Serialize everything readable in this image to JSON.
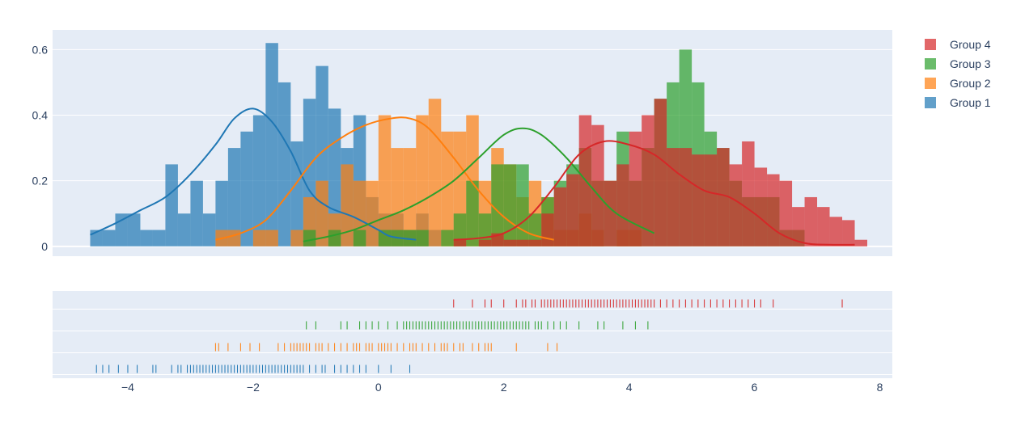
{
  "chart_data": {
    "type": "histogram",
    "style": {
      "plot_background": "#e5ecf6",
      "gridline": "#ffffff",
      "tick_text": "#2a3f5f",
      "bar_opacity": 0.7
    },
    "bin_width": 0.2,
    "x_axis": {
      "range": [
        -5.2,
        8.2
      ],
      "ticks": [
        -4,
        -2,
        0,
        2,
        4,
        6,
        8
      ],
      "tick_labels": [
        "−4",
        "−2",
        "0",
        "2",
        "4",
        "6",
        "8"
      ]
    },
    "y_axis": {
      "range": [
        -0.03,
        0.66
      ],
      "ticks": [
        0,
        0.2,
        0.4,
        0.6
      ],
      "tick_labels": [
        "0",
        "0.2",
        "0.4",
        "0.6"
      ]
    },
    "legend": {
      "position": "top-right",
      "order": [
        "Group 4",
        "Group 3",
        "Group 2",
        "Group 1"
      ]
    },
    "series": [
      {
        "name": "Group 1",
        "color": "#1f77b4",
        "bins_start": -4.6,
        "density": [
          0.05,
          0.05,
          0.1,
          0.1,
          0.05,
          0.05,
          0.25,
          0.1,
          0.2,
          0.1,
          0.2,
          0.3,
          0.35,
          0.4,
          0.62,
          0.5,
          0.32,
          0.45,
          0.55,
          0.42,
          0.3,
          0.4,
          0.15,
          0.1,
          0.1,
          0.05,
          0.1,
          0.05
        ],
        "kde_x": [
          -4.6,
          -4.2,
          -3.8,
          -3.4,
          -3.0,
          -2.6,
          -2.3,
          -2.0,
          -1.7,
          -1.4,
          -1.1,
          -0.8,
          -0.4,
          0.0,
          0.2,
          0.6
        ],
        "kde_y": [
          0.035,
          0.07,
          0.11,
          0.15,
          0.22,
          0.31,
          0.39,
          0.42,
          0.38,
          0.29,
          0.17,
          0.12,
          0.09,
          0.05,
          0.03,
          0.02
        ],
        "rugs": [
          -4.5,
          -4.4,
          -4.3,
          -4.15,
          -4.0,
          -3.85,
          -3.6,
          -3.55,
          -3.3,
          -3.2,
          -3.15,
          -3.05,
          -3.0,
          -2.95,
          -2.9,
          -2.85,
          -2.8,
          -2.75,
          -2.7,
          -2.65,
          -2.6,
          -2.55,
          -2.5,
          -2.45,
          -2.4,
          -2.35,
          -2.3,
          -2.25,
          -2.2,
          -2.15,
          -2.1,
          -2.05,
          -2.0,
          -1.95,
          -1.9,
          -1.85,
          -1.8,
          -1.75,
          -1.7,
          -1.65,
          -1.6,
          -1.55,
          -1.5,
          -1.45,
          -1.4,
          -1.35,
          -1.3,
          -1.25,
          -1.2,
          -1.1,
          -1.0,
          -0.9,
          -0.85,
          -0.7,
          -0.6,
          -0.5,
          -0.4,
          -0.3,
          -0.2,
          0.0,
          0.2,
          0.5
        ]
      },
      {
        "name": "Group 2",
        "color": "#ff7f0e",
        "bins_start": -2.6,
        "density": [
          0.05,
          0.05,
          0.0,
          0.05,
          0.05,
          0.0,
          0.05,
          0.15,
          0.2,
          0.1,
          0.25,
          0.2,
          0.2,
          0.4,
          0.3,
          0.3,
          0.4,
          0.45,
          0.35,
          0.35,
          0.4,
          0.2,
          0.3,
          0.25,
          0.15,
          0.2,
          0.15,
          0.05,
          0.05,
          0.1,
          0.05,
          0.0,
          0.05,
          0.05
        ],
        "kde_x": [
          -2.6,
          -2.2,
          -1.8,
          -1.4,
          -1.0,
          -0.6,
          -0.2,
          0.2,
          0.5,
          0.8,
          1.2,
          1.6,
          2.0,
          2.4,
          2.8
        ],
        "kde_y": [
          0.02,
          0.04,
          0.08,
          0.17,
          0.27,
          0.33,
          0.37,
          0.39,
          0.39,
          0.36,
          0.27,
          0.17,
          0.09,
          0.04,
          0.02
        ],
        "rugs": [
          -2.6,
          -2.55,
          -2.4,
          -2.2,
          -2.05,
          -1.9,
          -1.6,
          -1.5,
          -1.4,
          -1.35,
          -1.3,
          -1.25,
          -1.2,
          -1.15,
          -1.1,
          -1.0,
          -0.95,
          -0.9,
          -0.8,
          -0.7,
          -0.6,
          -0.5,
          -0.4,
          -0.35,
          -0.3,
          -0.2,
          -0.15,
          -0.1,
          0.0,
          0.05,
          0.1,
          0.15,
          0.2,
          0.3,
          0.4,
          0.5,
          0.55,
          0.6,
          0.7,
          0.8,
          0.9,
          1.0,
          1.05,
          1.1,
          1.2,
          1.3,
          1.35,
          1.5,
          1.6,
          1.7,
          1.75,
          1.8,
          2.2,
          2.7,
          2.85
        ]
      },
      {
        "name": "Group 3",
        "color": "#2ca02c",
        "bins_start": -1.2,
        "density": [
          0.05,
          0.0,
          0.05,
          0.0,
          0.05,
          0.0,
          0.05,
          0.05,
          0.05,
          0.05,
          0.0,
          0.05,
          0.1,
          0.2,
          0.1,
          0.25,
          0.25,
          0.25,
          0.1,
          0.15,
          0.2,
          0.25,
          0.3,
          0.2,
          0.2,
          0.35,
          0.2,
          0.3,
          0.45,
          0.5,
          0.6,
          0.5,
          0.35,
          0.3,
          0.2,
          0.15,
          0.15,
          0.15,
          0.05,
          0.05
        ],
        "kde_x": [
          -1.2,
          -0.8,
          -0.4,
          0.0,
          0.4,
          0.8,
          1.2,
          1.6,
          2.0,
          2.3,
          2.6,
          3.0,
          3.4,
          3.8,
          4.4
        ],
        "kde_y": [
          0.015,
          0.03,
          0.05,
          0.08,
          0.11,
          0.15,
          0.2,
          0.27,
          0.34,
          0.36,
          0.34,
          0.27,
          0.18,
          0.1,
          0.04
        ],
        "rugs": [
          -1.15,
          -1.0,
          -0.6,
          -0.5,
          -0.3,
          -0.2,
          -0.1,
          0.0,
          0.15,
          0.3,
          0.4,
          0.45,
          0.5,
          0.55,
          0.6,
          0.65,
          0.7,
          0.75,
          0.8,
          0.85,
          0.9,
          0.95,
          1.0,
          1.05,
          1.1,
          1.15,
          1.2,
          1.25,
          1.3,
          1.35,
          1.4,
          1.45,
          1.5,
          1.55,
          1.6,
          1.65,
          1.7,
          1.75,
          1.8,
          1.85,
          1.9,
          1.95,
          2.0,
          2.05,
          2.1,
          2.15,
          2.2,
          2.25,
          2.3,
          2.35,
          2.4,
          2.5,
          2.55,
          2.6,
          2.7,
          2.8,
          2.9,
          3.0,
          3.2,
          3.5,
          3.6,
          3.9,
          4.1,
          4.3
        ]
      },
      {
        "name": "Group 4",
        "color": "#d62728",
        "bins_start": 1.2,
        "density": [
          0.02,
          0.0,
          0.02,
          0.04,
          0.02,
          0.02,
          0.02,
          0.1,
          0.18,
          0.22,
          0.4,
          0.37,
          0.2,
          0.25,
          0.35,
          0.4,
          0.45,
          0.3,
          0.3,
          0.28,
          0.28,
          0.3,
          0.25,
          0.32,
          0.24,
          0.22,
          0.2,
          0.12,
          0.15,
          0.12,
          0.09,
          0.08,
          0.02
        ],
        "kde_x": [
          1.2,
          1.6,
          2.0,
          2.4,
          2.8,
          3.2,
          3.6,
          4.0,
          4.4,
          4.8,
          5.2,
          5.6,
          6.0,
          6.4,
          6.8,
          7.2,
          7.6
        ],
        "kde_y": [
          0.02,
          0.025,
          0.04,
          0.09,
          0.18,
          0.28,
          0.32,
          0.31,
          0.28,
          0.22,
          0.17,
          0.15,
          0.1,
          0.04,
          0.01,
          0.005,
          0.005
        ],
        "rugs": [
          1.2,
          1.5,
          1.7,
          1.8,
          2.0,
          2.2,
          2.3,
          2.35,
          2.45,
          2.5,
          2.6,
          2.65,
          2.7,
          2.75,
          2.8,
          2.85,
          2.9,
          2.95,
          3.0,
          3.05,
          3.1,
          3.15,
          3.2,
          3.25,
          3.3,
          3.35,
          3.4,
          3.45,
          3.5,
          3.55,
          3.6,
          3.65,
          3.7,
          3.75,
          3.8,
          3.85,
          3.9,
          3.95,
          4.0,
          4.05,
          4.1,
          4.15,
          4.2,
          4.25,
          4.3,
          4.35,
          4.4,
          4.5,
          4.6,
          4.7,
          4.8,
          4.9,
          5.0,
          5.1,
          5.2,
          5.3,
          5.4,
          5.5,
          5.6,
          5.7,
          5.8,
          5.9,
          6.0,
          6.1,
          6.3,
          7.4
        ]
      }
    ]
  }
}
